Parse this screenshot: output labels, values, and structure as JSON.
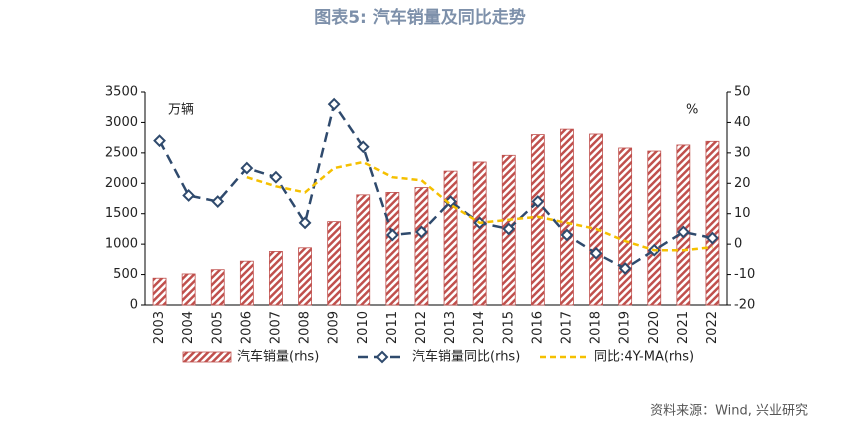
{
  "chart_data": {
    "type": "bar_line",
    "title": "图表5:  汽车销量及同比走势",
    "y_label": "万辆",
    "y2_label": "%",
    "source": "资料来源：Wind, 兴业研究",
    "categories": [
      "2003",
      "2004",
      "2005",
      "2006",
      "2007",
      "2008",
      "2009",
      "2010",
      "2011",
      "2012",
      "2013",
      "2014",
      "2015",
      "2016",
      "2017",
      "2018",
      "2019",
      "2020",
      "2021",
      "2022"
    ],
    "series": [
      {
        "name": "汽车销量(rhs)",
        "type": "bar",
        "color": "#c0504d",
        "values": [
          440,
          510,
          580,
          720,
          880,
          940,
          1370,
          1810,
          1850,
          1930,
          2200,
          2350,
          2460,
          2800,
          2890,
          2810,
          2580,
          2530,
          2630,
          2690
        ]
      },
      {
        "name": "汽车销量同比(rhs)",
        "type": "line",
        "axis": "y2",
        "color": "#2f4a6d",
        "values": [
          34,
          16,
          14,
          25,
          22,
          7,
          46,
          32,
          3,
          4,
          14,
          7,
          5,
          14,
          3,
          -3,
          -8,
          -2,
          4,
          2
        ]
      },
      {
        "name": "同比:4Y-MA(rhs)",
        "type": "line",
        "axis": "y2",
        "color": "#f5c000",
        "values": [
          null,
          null,
          null,
          22,
          19,
          17,
          25,
          27,
          22,
          21,
          13,
          7,
          8,
          9,
          7,
          5,
          1,
          -2,
          -2,
          -1
        ]
      }
    ],
    "ylim": [
      0,
      3500
    ],
    "yticks": [
      0,
      500,
      1000,
      1500,
      2000,
      2500,
      3000,
      3500
    ],
    "y2lim": [
      -20,
      50
    ],
    "y2ticks": [
      -20,
      -10,
      0,
      10,
      20,
      30,
      40,
      50
    ]
  }
}
